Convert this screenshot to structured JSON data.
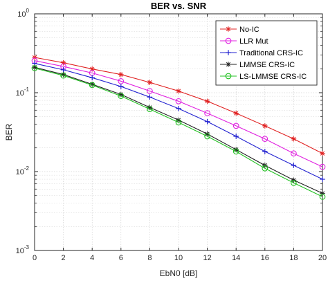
{
  "chart_data": {
    "type": "line",
    "title": "BER vs. SNR",
    "xlabel": "EbN0 [dB]",
    "ylabel": "BER",
    "x": [
      0,
      2,
      4,
      6,
      8,
      10,
      12,
      14,
      16,
      18,
      20
    ],
    "x_ticks": [
      "0",
      "2",
      "4",
      "6",
      "8",
      "10",
      "12",
      "14",
      "16",
      "18",
      "20"
    ],
    "xlim": [
      0,
      20
    ],
    "ylim": [
      0.001,
      1
    ],
    "yscale": "log",
    "y_ticks": [
      {
        "base": "10",
        "exp": "0"
      },
      {
        "base": "10",
        "exp": "-1"
      },
      {
        "base": "10",
        "exp": "-2"
      },
      {
        "base": "10",
        "exp": "-3"
      }
    ],
    "grid": true,
    "legend_position": "top-right",
    "series": [
      {
        "name": "No-IC",
        "color": "#e02020",
        "marker": "asterisk",
        "values": [
          0.28,
          0.24,
          0.2,
          0.17,
          0.135,
          0.105,
          0.078,
          0.055,
          0.038,
          0.026,
          0.017
        ]
      },
      {
        "name": "LLR Mut",
        "color": "#e020e0",
        "marker": "circle",
        "values": [
          0.255,
          0.215,
          0.178,
          0.14,
          0.105,
          0.078,
          0.055,
          0.038,
          0.026,
          0.017,
          0.0115
        ]
      },
      {
        "name": "Traditional CRS-IC",
        "color": "#2020d0",
        "marker": "plus",
        "values": [
          0.235,
          0.195,
          0.155,
          0.12,
          0.088,
          0.063,
          0.043,
          0.028,
          0.018,
          0.012,
          0.008
        ]
      },
      {
        "name": "LMMSE CRS-IC",
        "color": "#202020",
        "marker": "asterisk",
        "values": [
          0.21,
          0.17,
          0.128,
          0.095,
          0.065,
          0.045,
          0.03,
          0.019,
          0.012,
          0.0078,
          0.0053
        ]
      },
      {
        "name": "LS-LMMSE CRS-IC",
        "color": "#20c020",
        "marker": "circle",
        "values": [
          0.205,
          0.165,
          0.125,
          0.091,
          0.062,
          0.042,
          0.028,
          0.018,
          0.011,
          0.0072,
          0.0048
        ]
      }
    ]
  }
}
